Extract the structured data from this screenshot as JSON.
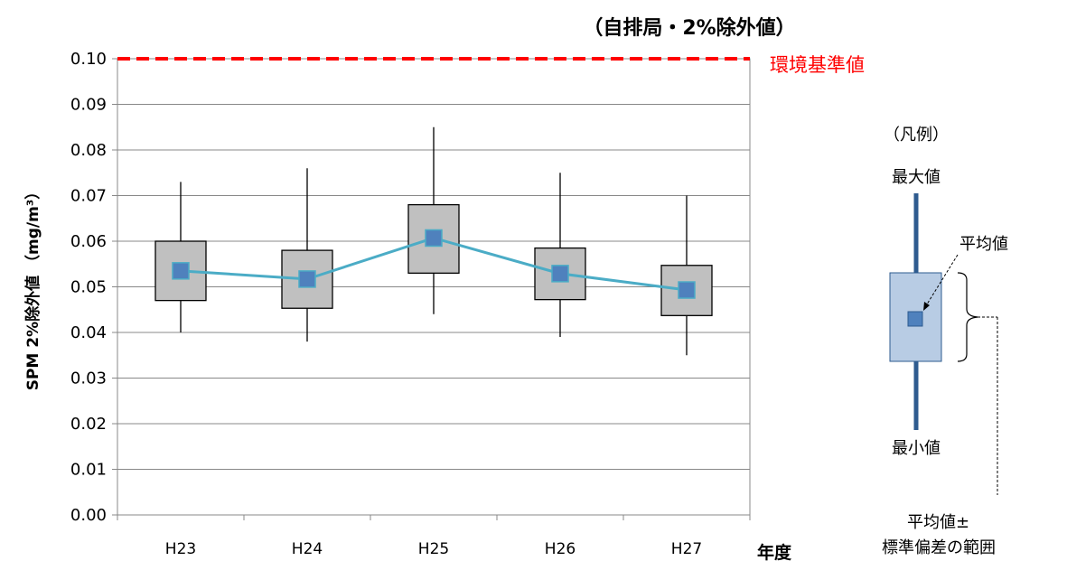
{
  "chart_data": {
    "type": "box",
    "title": "（自排局・2%除外値）",
    "ylabel": "SPM 2%除外値 （mg/m³）",
    "xlabel": "年度",
    "categories": [
      "H23",
      "H24",
      "H25",
      "H26",
      "H27"
    ],
    "ylim": [
      0,
      0.1
    ],
    "yticks": [
      "0.00",
      "0.01",
      "0.02",
      "0.03",
      "0.04",
      "0.05",
      "0.06",
      "0.07",
      "0.08",
      "0.09",
      "0.10"
    ],
    "grid": true,
    "series": [
      {
        "name": "平均値",
        "values": [
          0.0535,
          0.0517,
          0.0607,
          0.0529,
          0.0493
        ]
      },
      {
        "name": "最大値",
        "values": [
          0.073,
          0.076,
          0.085,
          0.075,
          0.07
        ]
      },
      {
        "name": "最小値",
        "values": [
          0.04,
          0.038,
          0.044,
          0.039,
          0.035
        ]
      },
      {
        "name": "平均値+標準偏差",
        "values": [
          0.06,
          0.058,
          0.068,
          0.0585,
          0.0547
        ]
      },
      {
        "name": "平均値-標準偏差",
        "values": [
          0.047,
          0.0453,
          0.053,
          0.0472,
          0.0437
        ]
      }
    ],
    "reference_line": {
      "label": "環境基準値",
      "value": 0.1,
      "color": "#ff0000"
    },
    "colors": {
      "box": "#c0c0c0",
      "mean_marker": "#4f81bd",
      "mean_line": "#4bacc6",
      "whisker": "#000000"
    }
  },
  "legend": {
    "title": "（凡例）",
    "max_label": "最大値",
    "mean_label": "平均値",
    "min_label": "最小値",
    "range_label_1": "平均値±",
    "range_label_2": "標準偏差の範囲",
    "colors": {
      "bar": "#2e5b8f",
      "box": "#b8cce4",
      "marker": "#4f81bd"
    }
  }
}
